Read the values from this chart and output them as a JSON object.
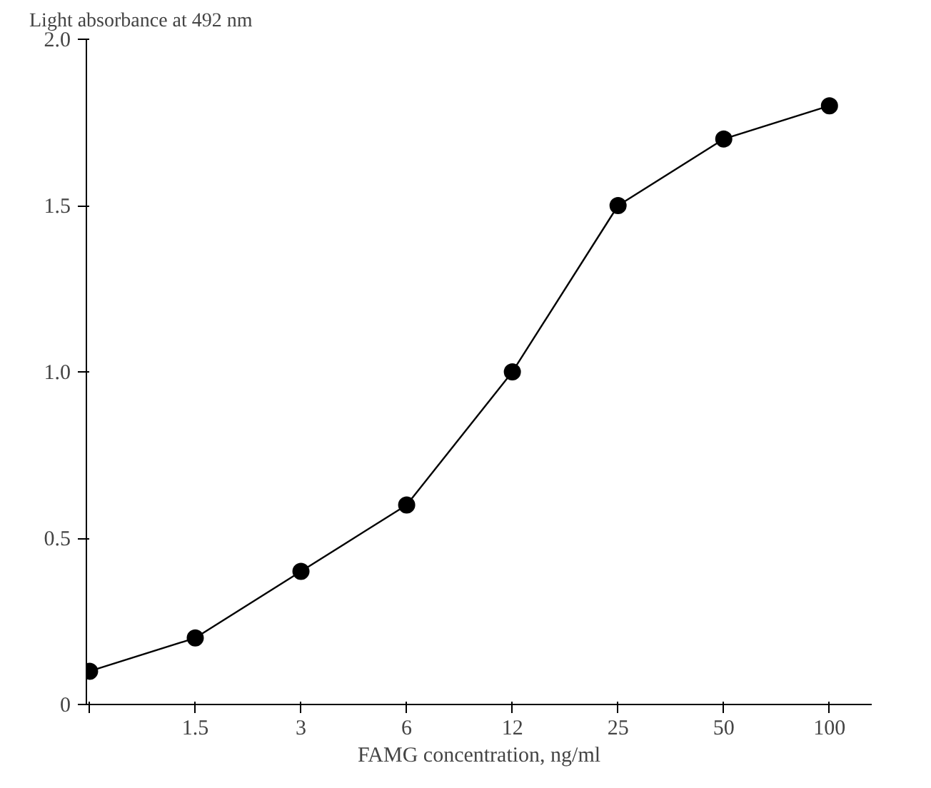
{
  "chart_data": {
    "type": "line",
    "ylabel": "Light absorbance at 492 nm",
    "xlabel": "FAMG concentration, ng/ml",
    "categories": [
      null,
      "1.5",
      "3",
      "6",
      "12",
      "25",
      "50",
      "100"
    ],
    "series": [
      {
        "color": "#000000",
        "values": [
          0.1,
          0.2,
          0.4,
          0.6,
          1.0,
          1.5,
          1.7,
          1.8
        ]
      }
    ],
    "ylim": [
      0,
      2.0
    ],
    "yticks": [
      0,
      0.5,
      {
        "value": 1.0,
        "label": "1.0"
      },
      1.5,
      {
        "value": 2.0,
        "label": "2.0"
      }
    ],
    "grid": false,
    "marker": "circle",
    "line_style": "solid"
  }
}
